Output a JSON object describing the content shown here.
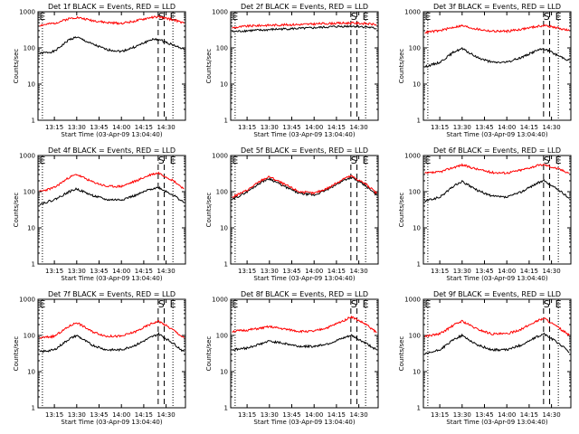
{
  "colors": {
    "events": "#000000",
    "lld": "#ff0000",
    "axes": "#000000",
    "background": "#ffffff"
  },
  "chart_data": [
    {
      "type": "line",
      "title": "Det 1f BLACK = Events, RED = LLD",
      "xlabel": "Start Time (03-Apr-09 13:04:40)",
      "ylabel": "Counts/sec",
      "yscale": "log",
      "ylim": [
        1,
        1000
      ],
      "yticks": [
        "1",
        "10",
        "100",
        "1000"
      ],
      "xticks": [
        "13:15",
        "13:30",
        "13:45",
        "14:00",
        "14:15",
        "14:30"
      ],
      "markers": [
        "E",
        "S",
        "E"
      ],
      "series": [
        {
          "color": "#000000",
          "x": [
            "13:05",
            "13:15",
            "13:25",
            "13:30",
            "13:40",
            "13:50",
            "14:00",
            "14:10",
            "14:20",
            "14:25",
            "14:35",
            "14:42"
          ],
          "values": [
            70,
            80,
            170,
            200,
            130,
            90,
            80,
            110,
            170,
            170,
            120,
            90
          ]
        },
        {
          "color": "#ff0000",
          "x": [
            "13:05",
            "13:15",
            "13:25",
            "13:30",
            "13:40",
            "13:50",
            "14:00",
            "14:10",
            "14:20",
            "14:25",
            "14:35",
            "14:42"
          ],
          "values": [
            420,
            480,
            650,
            700,
            580,
            500,
            480,
            560,
            700,
            720,
            600,
            480
          ]
        }
      ]
    },
    {
      "type": "line",
      "title": "Det 2f BLACK = Events, RED = LLD",
      "xlabel": "Start Time (03-Apr-09 13:04:40)",
      "ylabel": "Counts/sec",
      "yscale": "log",
      "ylim": [
        1,
        1000
      ],
      "yticks": [
        "1",
        "10",
        "100",
        "1000"
      ],
      "xticks": [
        "13:15",
        "13:30",
        "13:45",
        "14:00",
        "14:15",
        "14:30"
      ],
      "markers": [
        "E",
        "S",
        "E"
      ],
      "series": [
        {
          "color": "#000000",
          "x": [
            "13:05",
            "13:15",
            "13:25",
            "13:35",
            "13:45",
            "13:55",
            "14:05",
            "14:15",
            "14:25",
            "14:35",
            "14:42"
          ],
          "values": [
            280,
            300,
            310,
            330,
            340,
            350,
            370,
            390,
            400,
            380,
            340
          ]
        },
        {
          "color": "#ff0000",
          "x": [
            "13:05",
            "13:15",
            "13:25",
            "13:35",
            "13:45",
            "13:55",
            "14:05",
            "14:15",
            "14:25",
            "14:35",
            "14:42"
          ],
          "values": [
            360,
            400,
            420,
            430,
            440,
            450,
            470,
            480,
            490,
            470,
            440
          ]
        }
      ]
    },
    {
      "type": "line",
      "title": "Det 3f BLACK = Events, RED = LLD",
      "xlabel": "Start Time (03-Apr-09 13:04:40)",
      "ylabel": "Counts/sec",
      "yscale": "log",
      "ylim": [
        1,
        1000
      ],
      "yticks": [
        "1",
        "10",
        "100",
        "1000"
      ],
      "xticks": [
        "13:15",
        "13:30",
        "13:45",
        "14:00",
        "14:15",
        "14:30"
      ],
      "markers": [
        "E",
        "S",
        "E"
      ],
      "series": [
        {
          "color": "#000000",
          "x": [
            "13:05",
            "13:15",
            "13:25",
            "13:30",
            "13:40",
            "13:50",
            "14:00",
            "14:10",
            "14:20",
            "14:25",
            "14:35",
            "14:42"
          ],
          "values": [
            30,
            40,
            80,
            95,
            55,
            40,
            40,
            55,
            85,
            95,
            60,
            45
          ]
        },
        {
          "color": "#ff0000",
          "x": [
            "13:05",
            "13:15",
            "13:25",
            "13:30",
            "13:40",
            "13:50",
            "14:00",
            "14:10",
            "14:20",
            "14:25",
            "14:35",
            "14:42"
          ],
          "values": [
            270,
            300,
            380,
            410,
            330,
            290,
            290,
            330,
            390,
            420,
            350,
            300
          ]
        }
      ]
    },
    {
      "type": "line",
      "title": "Det 4f BLACK = Events, RED = LLD",
      "xlabel": "Start Time (03-Apr-09 13:04:40)",
      "ylabel": "Counts/sec",
      "yscale": "log",
      "ylim": [
        1,
        1000
      ],
      "yticks": [
        "1",
        "10",
        "100",
        "1000"
      ],
      "xticks": [
        "13:15",
        "13:30",
        "13:45",
        "14:00",
        "14:15",
        "14:30"
      ],
      "markers": [
        "E",
        "S",
        "E"
      ],
      "series": [
        {
          "color": "#000000",
          "x": [
            "13:05",
            "13:15",
            "13:25",
            "13:30",
            "13:40",
            "13:50",
            "14:00",
            "14:10",
            "14:20",
            "14:25",
            "14:35",
            "14:42"
          ],
          "values": [
            45,
            60,
            100,
            120,
            80,
            60,
            60,
            80,
            120,
            130,
            80,
            50
          ]
        },
        {
          "color": "#ff0000",
          "x": [
            "13:05",
            "13:15",
            "13:25",
            "13:30",
            "13:40",
            "13:50",
            "14:00",
            "14:10",
            "14:20",
            "14:25",
            "14:35",
            "14:42"
          ],
          "values": [
            100,
            130,
            250,
            300,
            190,
            140,
            140,
            200,
            300,
            330,
            200,
            120
          ]
        }
      ]
    },
    {
      "type": "line",
      "title": "Det 5f BLACK = Events, RED = LLD",
      "xlabel": "Start Time (03-Apr-09 13:04:40)",
      "ylabel": "Counts/sec",
      "yscale": "log",
      "ylim": [
        1,
        1000
      ],
      "yticks": [
        "1",
        "10",
        "100",
        "1000"
      ],
      "xticks": [
        "13:15",
        "13:30",
        "13:45",
        "14:00",
        "14:15",
        "14:30"
      ],
      "markers": [
        "E",
        "S",
        "E"
      ],
      "series": [
        {
          "color": "#000000",
          "x": [
            "13:05",
            "13:15",
            "13:25",
            "13:30",
            "13:40",
            "13:50",
            "14:00",
            "14:10",
            "14:20",
            "14:25",
            "14:35",
            "14:42"
          ],
          "values": [
            60,
            100,
            190,
            230,
            140,
            90,
            80,
            120,
            210,
            250,
            140,
            80
          ]
        },
        {
          "color": "#ff0000",
          "x": [
            "13:05",
            "13:15",
            "13:25",
            "13:30",
            "13:40",
            "13:50",
            "14:00",
            "14:10",
            "14:20",
            "14:25",
            "14:35",
            "14:42"
          ],
          "values": [
            70,
            110,
            210,
            260,
            160,
            100,
            90,
            130,
            230,
            270,
            160,
            90
          ]
        }
      ]
    },
    {
      "type": "line",
      "title": "Det 6f BLACK = Events, RED = LLD",
      "xlabel": "Start Time (03-Apr-09 13:04:40)",
      "ylabel": "Counts/sec",
      "yscale": "log",
      "ylim": [
        1,
        1000
      ],
      "yticks": [
        "1",
        "10",
        "100",
        "1000"
      ],
      "xticks": [
        "13:15",
        "13:30",
        "13:45",
        "14:00",
        "14:15",
        "14:30"
      ],
      "markers": [
        "E",
        "S",
        "E"
      ],
      "series": [
        {
          "color": "#000000",
          "x": [
            "13:05",
            "13:15",
            "13:25",
            "13:30",
            "13:40",
            "13:50",
            "14:00",
            "14:10",
            "14:20",
            "14:25",
            "14:35",
            "14:42"
          ],
          "values": [
            55,
            70,
            150,
            190,
            110,
            75,
            70,
            100,
            170,
            200,
            110,
            65
          ]
        },
        {
          "color": "#ff0000",
          "x": [
            "13:05",
            "13:15",
            "13:25",
            "13:30",
            "13:40",
            "13:50",
            "14:00",
            "14:10",
            "14:20",
            "14:25",
            "14:35",
            "14:42"
          ],
          "values": [
            320,
            350,
            480,
            550,
            420,
            340,
            330,
            400,
            520,
            560,
            420,
            330
          ]
        }
      ]
    },
    {
      "type": "line",
      "title": "Det 7f BLACK = Events, RED = LLD",
      "xlabel": "Start Time (03-Apr-09 13:04:40)",
      "ylabel": "Counts/sec",
      "yscale": "log",
      "ylim": [
        1,
        1000
      ],
      "yticks": [
        "1",
        "10",
        "100",
        "1000"
      ],
      "xticks": [
        "13:15",
        "13:30",
        "13:45",
        "14:00",
        "14:15",
        "14:30"
      ],
      "markers": [
        "E",
        "S",
        "E"
      ],
      "series": [
        {
          "color": "#000000",
          "x": [
            "13:05",
            "13:15",
            "13:25",
            "13:30",
            "13:40",
            "13:50",
            "14:00",
            "14:10",
            "14:20",
            "14:25",
            "14:35",
            "14:42"
          ],
          "values": [
            35,
            40,
            80,
            100,
            55,
            40,
            40,
            55,
            90,
            110,
            60,
            35
          ]
        },
        {
          "color": "#ff0000",
          "x": [
            "13:05",
            "13:15",
            "13:25",
            "13:30",
            "13:40",
            "13:50",
            "14:00",
            "14:10",
            "14:20",
            "14:25",
            "14:35",
            "14:42"
          ],
          "values": [
            85,
            95,
            180,
            230,
            130,
            95,
            95,
            130,
            210,
            250,
            140,
            85
          ]
        }
      ]
    },
    {
      "type": "line",
      "title": "Det 8f BLACK = Events, RED = LLD",
      "xlabel": "Start Time (03-Apr-09 13:04:40)",
      "ylabel": "Counts/sec",
      "yscale": "log",
      "ylim": [
        1,
        1000
      ],
      "yticks": [
        "1",
        "10",
        "100",
        "1000"
      ],
      "xticks": [
        "13:15",
        "13:30",
        "13:45",
        "14:00",
        "14:15",
        "14:30"
      ],
      "markers": [
        "E",
        "S",
        "E"
      ],
      "series": [
        {
          "color": "#000000",
          "x": [
            "13:05",
            "13:15",
            "13:25",
            "13:30",
            "13:40",
            "13:50",
            "14:00",
            "14:10",
            "14:20",
            "14:25",
            "14:35",
            "14:42"
          ],
          "values": [
            40,
            45,
            60,
            70,
            60,
            50,
            50,
            60,
            85,
            100,
            60,
            40
          ]
        },
        {
          "color": "#ff0000",
          "x": [
            "13:05",
            "13:15",
            "13:25",
            "13:30",
            "13:40",
            "13:50",
            "14:00",
            "14:10",
            "14:20",
            "14:25",
            "14:35",
            "14:42"
          ],
          "values": [
            130,
            140,
            160,
            175,
            150,
            130,
            130,
            170,
            260,
            330,
            200,
            120
          ]
        }
      ]
    },
    {
      "type": "line",
      "title": "Det 9f BLACK = Events, RED = LLD",
      "xlabel": "Start Time (03-Apr-09 13:04:40)",
      "ylabel": "Counts/sec",
      "yscale": "log",
      "ylim": [
        1,
        1000
      ],
      "yticks": [
        "1",
        "10",
        "100",
        "1000"
      ],
      "xticks": [
        "13:15",
        "13:30",
        "13:45",
        "14:00",
        "14:15",
        "14:30"
      ],
      "markers": [
        "E",
        "S",
        "E"
      ],
      "series": [
        {
          "color": "#000000",
          "x": [
            "13:05",
            "13:15",
            "13:25",
            "13:30",
            "13:40",
            "13:50",
            "14:00",
            "14:10",
            "14:20",
            "14:25",
            "14:35",
            "14:42"
          ],
          "values": [
            30,
            40,
            80,
            100,
            55,
            40,
            40,
            55,
            90,
            110,
            60,
            35
          ]
        },
        {
          "color": "#ff0000",
          "x": [
            "13:05",
            "13:15",
            "13:25",
            "13:30",
            "13:40",
            "13:50",
            "14:00",
            "14:10",
            "14:20",
            "14:25",
            "14:35",
            "14:42"
          ],
          "values": [
            95,
            110,
            200,
            250,
            150,
            110,
            110,
            150,
            250,
            300,
            160,
            100
          ]
        }
      ]
    }
  ]
}
